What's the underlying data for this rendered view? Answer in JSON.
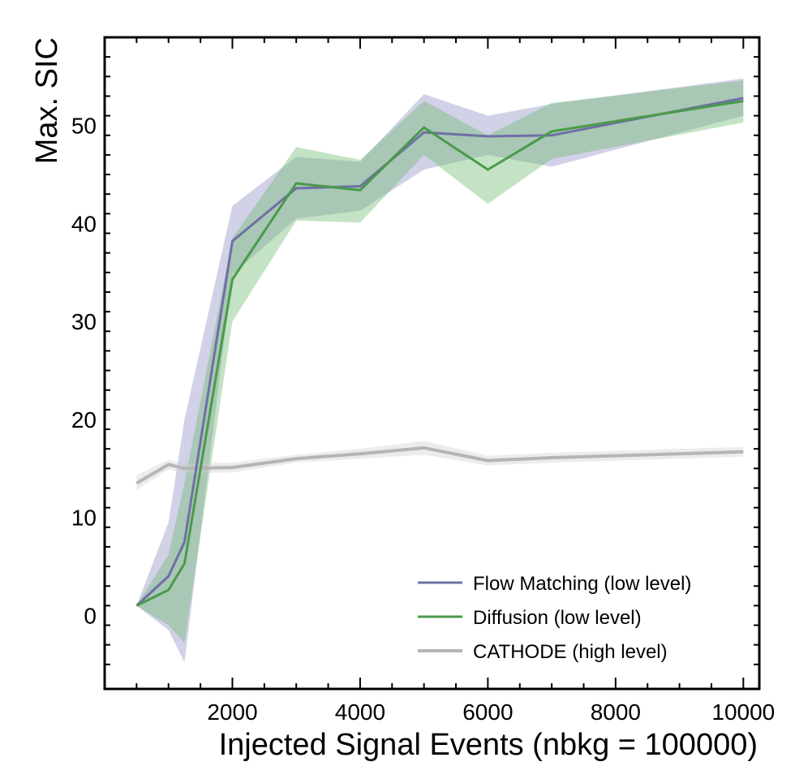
{
  "chart_data": {
    "type": "line",
    "xlabel": "Injected Signal Events (nbkg = 100000)",
    "ylabel": "Max. SIC",
    "xlim": [
      0,
      10250
    ],
    "ylim": [
      -7.5,
      59
    ],
    "x_ticks": [
      2000,
      4000,
      6000,
      8000,
      10000
    ],
    "x_tick_labels": [
      "2000",
      "4000",
      "6000",
      "8000",
      "10000"
    ],
    "y_ticks": [
      0,
      10,
      20,
      30,
      40,
      50
    ],
    "y_tick_labels": [
      "0",
      "10",
      "20",
      "30",
      "40",
      "50"
    ],
    "grid": false,
    "legend_position": "lower-right",
    "x": [
      500,
      1000,
      1250,
      2000,
      3000,
      4000,
      5000,
      6000,
      7000,
      10000
    ],
    "series": [
      {
        "name": "Flow Matching (low level)",
        "color": "#6f6fa6",
        "band_color": "#8c8cc4",
        "values": [
          1.0,
          4.0,
          7.5,
          38.2,
          43.6,
          43.8,
          49.3,
          48.9,
          49.0,
          52.8
        ],
        "lower": [
          1.0,
          -1.5,
          -4.8,
          34.8,
          40.5,
          41.3,
          45.5,
          47.0,
          45.8,
          51.0
        ],
        "upper": [
          1.0,
          9.5,
          20.0,
          41.8,
          46.8,
          46.3,
          53.2,
          51.0,
          52.2,
          54.8
        ]
      },
      {
        "name": "Diffusion (low level)",
        "color": "#4a9a4a",
        "band_color": "#6cb86c",
        "values": [
          1.0,
          2.6,
          5.3,
          34.3,
          44.1,
          43.4,
          49.8,
          45.5,
          49.4,
          52.5
        ],
        "lower": [
          1.0,
          -1.0,
          -2.8,
          30.0,
          40.3,
          40.1,
          47.0,
          42.0,
          46.6,
          50.3
        ],
        "upper": [
          1.0,
          6.2,
          13.5,
          38.5,
          47.8,
          46.5,
          52.5,
          49.0,
          52.3,
          54.6
        ]
      },
      {
        "name": "CATHODE (high level)",
        "color": "#b5b5b5",
        "band_color": "#cfcfcf",
        "values": [
          13.5,
          15.4,
          15.0,
          15.1,
          16.0,
          16.5,
          17.1,
          15.8,
          16.1,
          16.7
        ],
        "lower": [
          12.8,
          14.9,
          14.5,
          14.6,
          15.6,
          16.0,
          16.4,
          15.3,
          15.6,
          16.2
        ],
        "upper": [
          14.3,
          15.9,
          15.5,
          15.6,
          16.4,
          17.0,
          17.8,
          16.3,
          16.6,
          17.2
        ]
      }
    ]
  }
}
